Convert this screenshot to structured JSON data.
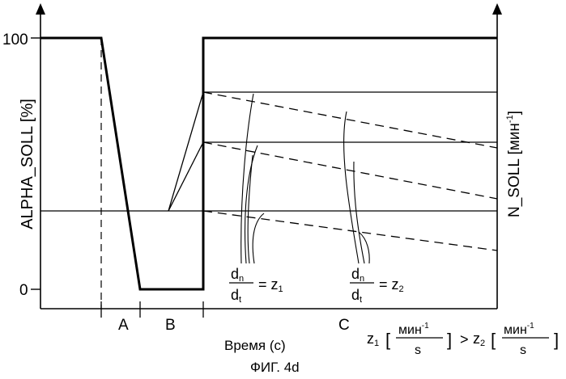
{
  "figure": {
    "caption": "ФИГ. 4d",
    "y_left_label": "ALPHA_SOLL [%]",
    "y_right_label_main": "N_SOLL [мин",
    "y_right_label_sup": "-1",
    "y_right_label_close": "]",
    "tick_100": "100",
    "tick_0": "0",
    "x_label": "Время (с)",
    "phases": [
      "A",
      "B",
      "C"
    ],
    "annotation_1": {
      "num": "d",
      "num_sub": "n",
      "den": "d",
      "den_sub": "t",
      "rhs": "= z",
      "rhs_sub": "1"
    },
    "annotation_2": {
      "num": "d",
      "num_sub": "n",
      "den": "d",
      "den_sub": "t",
      "rhs": "= z",
      "rhs_sub": "2"
    },
    "legend": {
      "z1": "z",
      "z1_sub": "1",
      "bracket_open": "[",
      "unit_num": "мин",
      "unit_sup": "-1",
      "unit_den": "s",
      "bracket_close": "]",
      "gt": ">",
      "z2": "z",
      "z2_sub": "2"
    }
  }
}
